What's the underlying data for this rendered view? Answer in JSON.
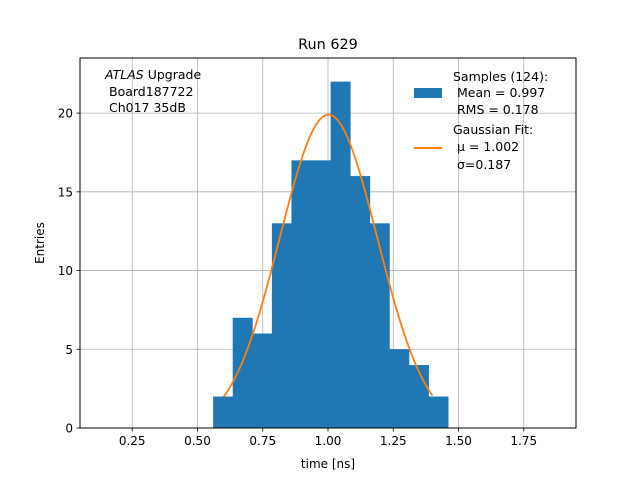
{
  "chart_data": {
    "type": "bar",
    "title": "Run 629",
    "xlabel": "time [ns]",
    "ylabel": "Entries",
    "xlim": [
      0.05,
      1.95
    ],
    "ylim": [
      0,
      23.5
    ],
    "grid": true,
    "legend_position": "upper-right",
    "xticks": [
      0.25,
      0.5,
      0.75,
      1.0,
      1.25,
      1.5,
      1.75
    ],
    "xtick_labels": [
      "0.25",
      "0.50",
      "0.75",
      "1.00",
      "1.25",
      "1.50",
      "1.75"
    ],
    "yticks": [
      0,
      5,
      10,
      15,
      20
    ],
    "ytick_labels": [
      "0",
      "5",
      "10",
      "15",
      "20"
    ],
    "info_text": {
      "atlas": "ATLAS",
      "upgrade": " Upgrade",
      "board": "Board187722",
      "channel": "Ch017 35dB"
    },
    "histogram": {
      "color": "#1f77b4",
      "bin_edges": [
        0.56,
        0.635,
        0.71,
        0.785,
        0.86,
        0.935,
        1.01,
        1.085,
        1.16,
        1.235,
        1.31,
        1.385,
        1.46
      ],
      "counts": [
        2,
        7,
        6,
        13,
        17,
        17,
        22,
        16,
        13,
        5,
        4,
        2
      ]
    },
    "fit": {
      "color": "#ff7f0e",
      "mu": 1.002,
      "sigma": 0.187,
      "amplitude": 19.9,
      "x_range": [
        0.6,
        1.4
      ]
    },
    "legend": {
      "samples_title": "Samples (124):",
      "samples_mean": " Mean = 0.997",
      "samples_rms": " RMS = 0.178",
      "fit_title": "Gaussian Fit:",
      "fit_mu": " μ = 1.002",
      "fit_sigma": " σ=0.187"
    }
  }
}
